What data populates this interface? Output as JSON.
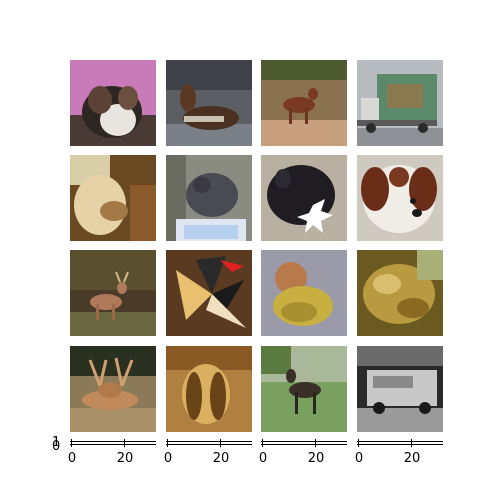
{
  "grid": {
    "rows": 4,
    "cols": 4,
    "tiles": [
      {
        "subject": "dog-on-pink-background"
      },
      {
        "subject": "horse-lying-down"
      },
      {
        "subject": "deer-in-field"
      },
      {
        "subject": "truck-with-deer-painting"
      },
      {
        "subject": "frog-in-hand"
      },
      {
        "subject": "cat-near-screen"
      },
      {
        "subject": "black-dog-with-white-toy"
      },
      {
        "subject": "saint-bernard-puppy"
      },
      {
        "subject": "deer-in-forest"
      },
      {
        "subject": "airplane-kite"
      },
      {
        "subject": "small-dog-in-yellow-coat"
      },
      {
        "subject": "frog-on-leaves"
      },
      {
        "subject": "deer-with-antlers"
      },
      {
        "subject": "long-haired-dog"
      },
      {
        "subject": "deer-on-grass"
      },
      {
        "subject": "grayscale-truck"
      }
    ]
  },
  "axes": {
    "x_tick_labels": [
      "0",
      "20"
    ],
    "y_tick_labels": [
      "0",
      "1"
    ]
  }
}
